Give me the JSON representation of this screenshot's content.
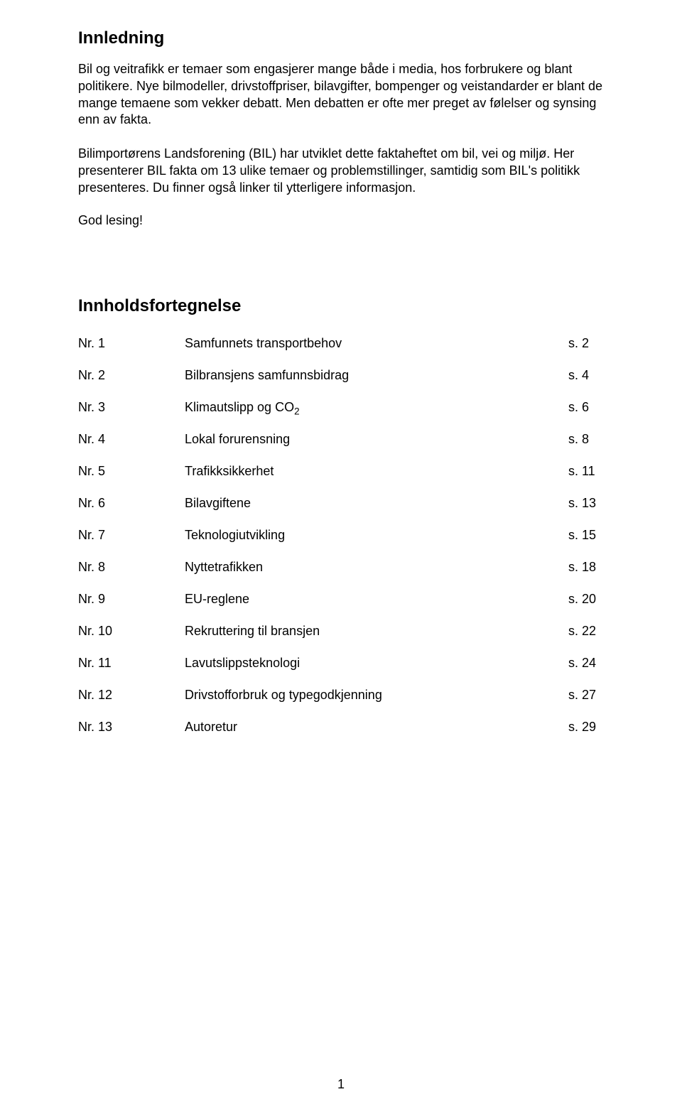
{
  "intro": {
    "title": "Innledning",
    "p1": "Bil og veitrafikk er temaer som engasjerer mange både i media, hos forbrukere og blant politikere. Nye bilmodeller, drivstoffpriser, bilavgifter, bompenger og veistandarder er blant de mange temaene som vekker debatt. Men debatten er ofte mer preget av følelser og synsing enn av fakta.",
    "p2": "Bilimportørens Landsforening (BIL) har utviklet dette faktaheftet om bil, vei og miljø. Her presenterer BIL fakta om 13 ulike temaer og problemstillinger, samtidig som BIL's politikk presenteres. Du finner også linker til ytterligere informasjon.",
    "signoff": "God lesing!"
  },
  "toc": {
    "title": "Innholdsfortegnelse",
    "nr_prefix": "Nr.",
    "page_prefix": "s.",
    "items": [
      {
        "nr": "1",
        "label": "Samfunnets transportbehov",
        "page": "2"
      },
      {
        "nr": "2",
        "label": "Bilbransjens samfunnsbidrag",
        "page": "4"
      },
      {
        "nr": "3",
        "label_html": "Klimautslipp og CO<span class=\"sub\">2</span>",
        "page": "6"
      },
      {
        "nr": "4",
        "label": "Lokal forurensning",
        "page": "8"
      },
      {
        "nr": "5",
        "label": "Trafikksikkerhet",
        "page": "11"
      },
      {
        "nr": "6",
        "label": "Bilavgiftene",
        "page": "13"
      },
      {
        "nr": "7",
        "label": "Teknologiutvikling",
        "page": "15"
      },
      {
        "nr": "8",
        "label": "Nyttetrafikken",
        "page": "18"
      },
      {
        "nr": "9",
        "label": "EU-reglene",
        "page": "20"
      },
      {
        "nr": "10",
        "label": "Rekruttering til bransjen",
        "page": "22"
      },
      {
        "nr": "11",
        "label": "Lavutslippsteknologi",
        "page": "24"
      },
      {
        "nr": "12",
        "label": "Drivstofforbruk og typegodkjenning",
        "page": "27"
      },
      {
        "nr": "13",
        "label": "Autoretur",
        "page": "29"
      }
    ]
  },
  "page_number": "1",
  "style": {
    "background_color": "#ffffff",
    "text_color": "#000000",
    "font_family": "Verdana",
    "title_fontsize_pt": 18,
    "body_fontsize_pt": 13,
    "line_height": 1.32
  }
}
